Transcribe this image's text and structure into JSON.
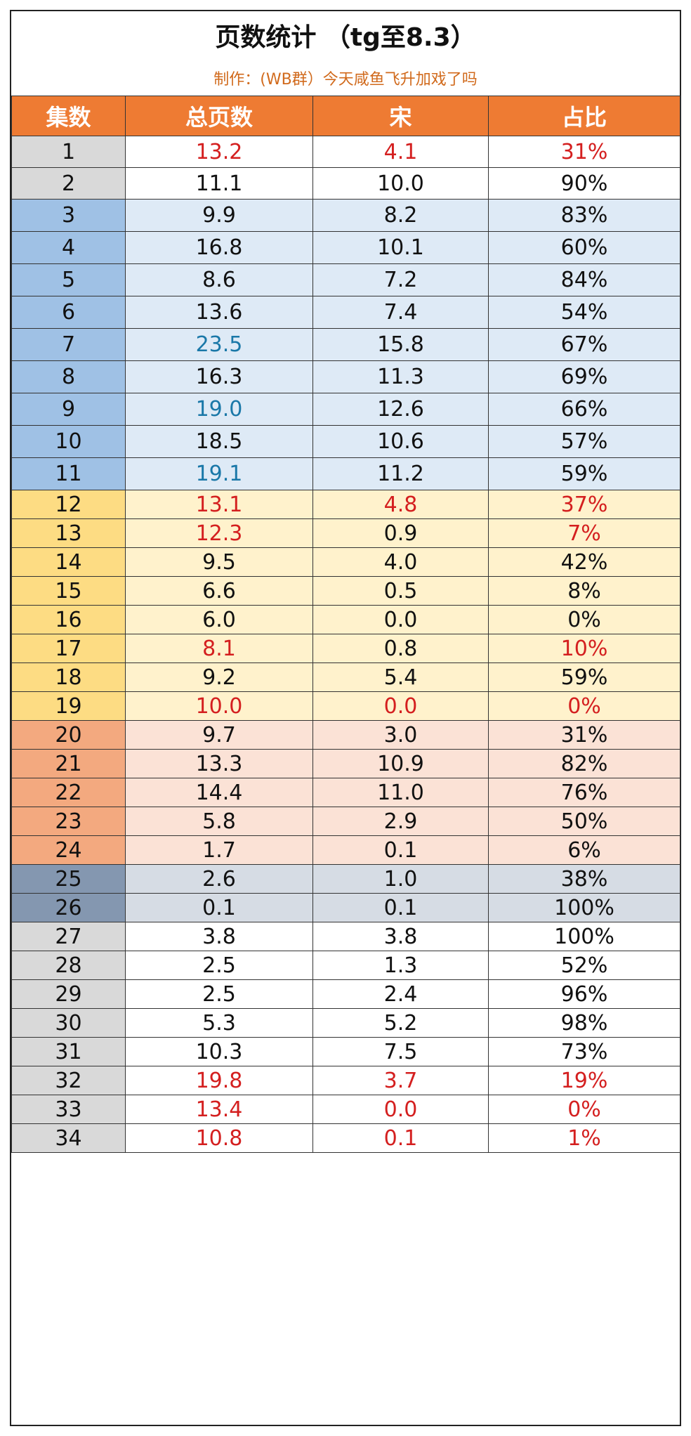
{
  "title": "页数统计 （tg至8.3）",
  "subtitle": "制作：(WB群）今天咸鱼飞升加戏了吗",
  "colors": {
    "header_bg": "#ee7b33",
    "red": "#d41f1f",
    "blue": "#1a78a8",
    "group_white_ep": "#d9d9d9",
    "group_blue_ep": "#9fc1e5",
    "group_blue_row": "#deeaf6",
    "group_yellow_ep": "#fddc83",
    "group_yellow_row": "#fff2cc",
    "group_orange_ep": "#f3a97f",
    "group_orange_row": "#fbe2d6",
    "group_slate_ep": "#8497b0",
    "group_slate_row": "#d6dce4"
  },
  "table": {
    "headers": [
      "集数",
      "总页数",
      "宋",
      "占比"
    ],
    "rows": [
      {
        "ep": "1",
        "total": "13.2",
        "song": "4.1",
        "ratio": "31%",
        "group": "white",
        "c_total": "red",
        "c_song": "red",
        "c_ratio": "red"
      },
      {
        "ep": "2",
        "total": "11.1",
        "song": "10.0",
        "ratio": "90%",
        "group": "white"
      },
      {
        "ep": "3",
        "total": "9.9",
        "song": "8.2",
        "ratio": "83%",
        "group": "blue"
      },
      {
        "ep": "4",
        "total": "16.8",
        "song": "10.1",
        "ratio": "60%",
        "group": "blue"
      },
      {
        "ep": "5",
        "total": "8.6",
        "song": "7.2",
        "ratio": "84%",
        "group": "blue"
      },
      {
        "ep": "6",
        "total": "13.6",
        "song": "7.4",
        "ratio": "54%",
        "group": "blue"
      },
      {
        "ep": "7",
        "total": "23.5",
        "song": "15.8",
        "ratio": "67%",
        "group": "blue",
        "c_total": "blue"
      },
      {
        "ep": "8",
        "total": "16.3",
        "song": "11.3",
        "ratio": "69%",
        "group": "blue"
      },
      {
        "ep": "9",
        "total": "19.0",
        "song": "12.6",
        "ratio": "66%",
        "group": "blue",
        "c_total": "blue"
      },
      {
        "ep": "10",
        "total": "18.5",
        "song": "10.6",
        "ratio": "57%",
        "group": "blue"
      },
      {
        "ep": "11",
        "total": "19.1",
        "song": "11.2",
        "ratio": "59%",
        "group": "blue",
        "c_total": "blue"
      },
      {
        "ep": "12",
        "total": "13.1",
        "song": "4.8",
        "ratio": "37%",
        "group": "yellow",
        "c_total": "red",
        "c_song": "red",
        "c_ratio": "red"
      },
      {
        "ep": "13",
        "total": "12.3",
        "song": "0.9",
        "ratio": "7%",
        "group": "yellow",
        "c_total": "red",
        "c_ratio": "red"
      },
      {
        "ep": "14",
        "total": "9.5",
        "song": "4.0",
        "ratio": "42%",
        "group": "yellow"
      },
      {
        "ep": "15",
        "total": "6.6",
        "song": "0.5",
        "ratio": "8%",
        "group": "yellow"
      },
      {
        "ep": "16",
        "total": "6.0",
        "song": "0.0",
        "ratio": "0%",
        "group": "yellow"
      },
      {
        "ep": "17",
        "total": "8.1",
        "song": "0.8",
        "ratio": "10%",
        "group": "yellow",
        "c_total": "red",
        "c_ratio": "red"
      },
      {
        "ep": "18",
        "total": "9.2",
        "song": "5.4",
        "ratio": "59%",
        "group": "yellow"
      },
      {
        "ep": "19",
        "total": "10.0",
        "song": "0.0",
        "ratio": "0%",
        "group": "yellow",
        "c_total": "red",
        "c_song": "red",
        "c_ratio": "red"
      },
      {
        "ep": "20",
        "total": "9.7",
        "song": "3.0",
        "ratio": "31%",
        "group": "orange"
      },
      {
        "ep": "21",
        "total": "13.3",
        "song": "10.9",
        "ratio": "82%",
        "group": "orange"
      },
      {
        "ep": "22",
        "total": "14.4",
        "song": "11.0",
        "ratio": "76%",
        "group": "orange"
      },
      {
        "ep": "23",
        "total": "5.8",
        "song": "2.9",
        "ratio": "50%",
        "group": "orange"
      },
      {
        "ep": "24",
        "total": "1.7",
        "song": "0.1",
        "ratio": "6%",
        "group": "orange"
      },
      {
        "ep": "25",
        "total": "2.6",
        "song": "1.0",
        "ratio": "38%",
        "group": "slate"
      },
      {
        "ep": "26",
        "total": "0.1",
        "song": "0.1",
        "ratio": "100%",
        "group": "slate"
      },
      {
        "ep": "27",
        "total": "3.8",
        "song": "3.8",
        "ratio": "100%",
        "group": "white"
      },
      {
        "ep": "28",
        "total": "2.5",
        "song": "1.3",
        "ratio": "52%",
        "group": "white"
      },
      {
        "ep": "29",
        "total": "2.5",
        "song": "2.4",
        "ratio": "96%",
        "group": "white"
      },
      {
        "ep": "30",
        "total": "5.3",
        "song": "5.2",
        "ratio": "98%",
        "group": "white"
      },
      {
        "ep": "31",
        "total": "10.3",
        "song": "7.5",
        "ratio": "73%",
        "group": "white"
      },
      {
        "ep": "32",
        "total": "19.8",
        "song": "3.7",
        "ratio": "19%",
        "group": "white",
        "c_total": "red",
        "c_song": "red",
        "c_ratio": "red"
      },
      {
        "ep": "33",
        "total": "13.4",
        "song": "0.0",
        "ratio": "0%",
        "group": "white",
        "c_total": "red",
        "c_song": "red",
        "c_ratio": "red"
      },
      {
        "ep": "34",
        "total": "10.8",
        "song": "0.1",
        "ratio": "1%",
        "group": "white",
        "c_total": "red",
        "c_song": "red",
        "c_ratio": "red"
      }
    ]
  }
}
